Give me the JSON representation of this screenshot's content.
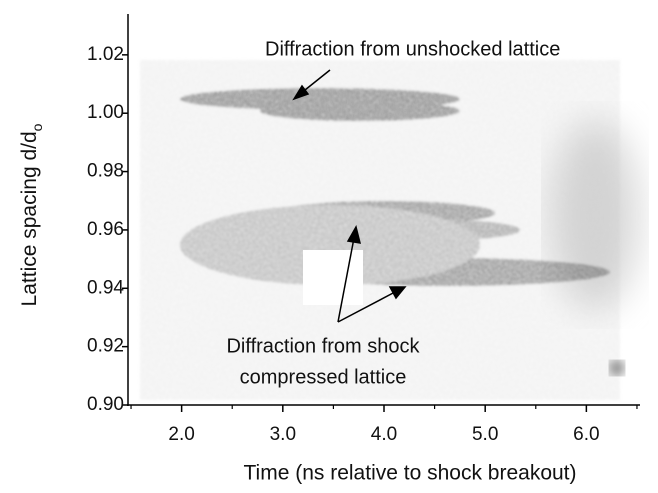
{
  "chart_data": {
    "type": "image",
    "xlabel": "Time (ns relative to shock breakout)",
    "ylabel": "Lattice spacing d/d",
    "ylabel_sub": "o",
    "xlim": [
      1.47,
      6.53
    ],
    "ylim": [
      0.9,
      1.034
    ],
    "xticks": [
      {
        "value": 2,
        "label": "2.0"
      },
      {
        "value": 3,
        "label": "3.0"
      },
      {
        "value": 4,
        "label": "4.0"
      },
      {
        "value": 5,
        "label": "5.0"
      },
      {
        "value": 6,
        "label": "6.0"
      }
    ],
    "xminorticks": [
      1.5,
      2.5,
      3.5,
      4.5,
      5.5,
      6.5
    ],
    "yticks": [
      {
        "value": 0.9,
        "label": "0.90"
      },
      0.92,
      0.94,
      0.96,
      0.98,
      {
        "value": 1,
        "label": "1.00"
      },
      1.02
    ],
    "annotations": [
      "Diffraction from unshocked lattice",
      "Diffraction from shock",
      "compressed lattice"
    ]
  }
}
